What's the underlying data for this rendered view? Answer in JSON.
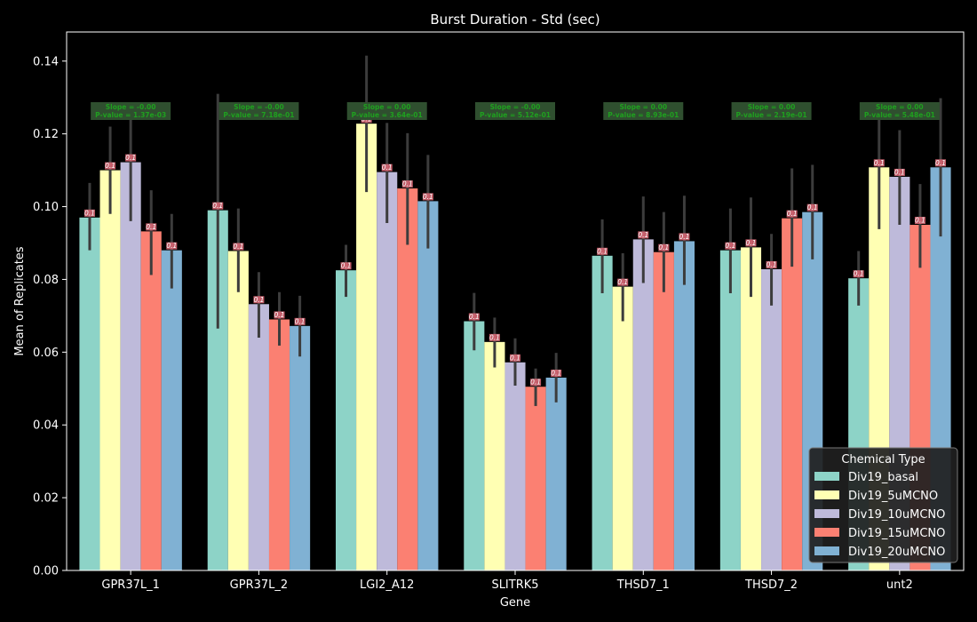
{
  "chart_data": {
    "type": "bar",
    "title": "Burst Duration - Std (sec)",
    "xlabel": "Gene",
    "ylabel": "Mean of Replicates",
    "ylim": [
      0,
      0.148
    ],
    "yticks": [
      0.0,
      0.02,
      0.04,
      0.06,
      0.08,
      0.1,
      0.12,
      0.14
    ],
    "ytick_labels": [
      "0.00",
      "0.02",
      "0.04",
      "0.06",
      "0.08",
      "0.10",
      "0.12",
      "0.14"
    ],
    "categories": [
      "GPR37L_1",
      "GPR37L_2",
      "LGI2_A12",
      "SLITRK5",
      "THSD7_1",
      "THSD7_2",
      "unt2"
    ],
    "series": [
      {
        "name": "Div19_basal",
        "color": "#8dd3c7",
        "values": [
          0.097,
          0.099,
          0.0825,
          0.0685,
          0.0865,
          0.088,
          0.0803
        ],
        "err_low": [
          0.088,
          0.0665,
          0.0752,
          0.0605,
          0.0762,
          0.0762,
          0.0728
        ],
        "err_high": [
          0.1065,
          0.131,
          0.0895,
          0.0763,
          0.0965,
          0.0995,
          0.0878
        ]
      },
      {
        "name": "Div19_5uMCNO",
        "color": "#ffffb3",
        "values": [
          0.11,
          0.0878,
          0.1228,
          0.0628,
          0.078,
          0.0888,
          0.1108
        ],
        "err_low": [
          0.098,
          0.0765,
          0.104,
          0.0558,
          0.0685,
          0.0752,
          0.0938
        ],
        "err_high": [
          0.122,
          0.0995,
          0.1415,
          0.0695,
          0.0872,
          0.1025,
          0.1282
        ]
      },
      {
        "name": "Div19_10uMCNO",
        "color": "#bebada",
        "values": [
          0.1122,
          0.0732,
          0.1095,
          0.0572,
          0.091,
          0.0828,
          0.1082
        ],
        "err_low": [
          0.096,
          0.064,
          0.0955,
          0.0508,
          0.079,
          0.0728,
          0.095
        ],
        "err_high": [
          0.1275,
          0.082,
          0.123,
          0.0638,
          0.1028,
          0.0925,
          0.121
        ]
      },
      {
        "name": "Div19_15uMCNO",
        "color": "#fb8072",
        "values": [
          0.0932,
          0.069,
          0.105,
          0.0505,
          0.0875,
          0.0968,
          0.095
        ],
        "err_low": [
          0.0812,
          0.0618,
          0.0895,
          0.0452,
          0.0765,
          0.0835,
          0.0832
        ],
        "err_high": [
          0.1045,
          0.0765,
          0.1202,
          0.0555,
          0.0985,
          0.1105,
          0.1062
        ]
      },
      {
        "name": "Div19_20uMCNO",
        "color": "#80b1d3",
        "values": [
          0.088,
          0.0672,
          0.1015,
          0.053,
          0.0905,
          0.0985,
          0.1108
        ],
        "err_low": [
          0.0775,
          0.0588,
          0.0885,
          0.0462,
          0.0785,
          0.0855,
          0.0918
        ],
        "err_high": [
          0.098,
          0.0755,
          0.1142,
          0.0598,
          0.103,
          0.1115,
          0.1298
        ]
      }
    ],
    "bar_label_text": "0.1",
    "annotations": [
      {
        "slope": "Slope = -0.00",
        "pvalue": "P-value = 1.37e-03"
      },
      {
        "slope": "Slope = -0.00",
        "pvalue": "P-value = 7.18e-01"
      },
      {
        "slope": "Slope = 0.00",
        "pvalue": "P-value = 3.64e-01"
      },
      {
        "slope": "Slope = -0.00",
        "pvalue": "P-value = 5.12e-01"
      },
      {
        "slope": "Slope = 0.00",
        "pvalue": "P-value = 8.93e-01"
      },
      {
        "slope": "Slope = 0.00",
        "pvalue": "P-value = 2.19e-01"
      },
      {
        "slope": "Slope = 0.00",
        "pvalue": "P-value = 5.48e-01"
      }
    ],
    "legend": {
      "title": "Chemical Type",
      "placement": "lower-right"
    },
    "grid": false
  }
}
